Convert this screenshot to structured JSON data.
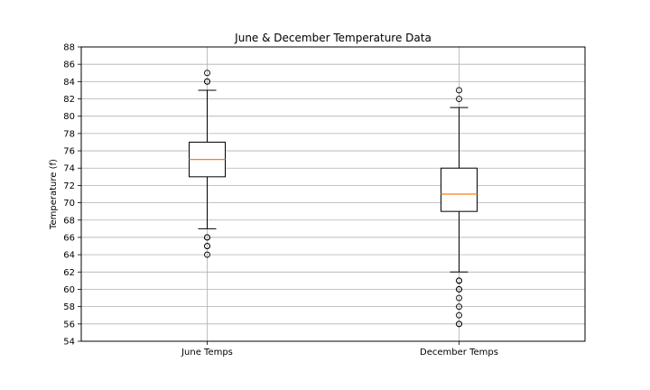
{
  "chart_data": {
    "type": "box",
    "title": "June & December Temperature Data",
    "ylabel": "Temperature (f)",
    "xlabel": "",
    "ylim": [
      54,
      88
    ],
    "yticks": [
      54,
      56,
      58,
      60,
      62,
      64,
      66,
      68,
      70,
      72,
      74,
      76,
      78,
      80,
      82,
      84,
      86,
      88
    ],
    "grid": true,
    "categories": [
      "June Temps",
      "December Temps"
    ],
    "boxes": [
      {
        "label": "June Temps",
        "whisker_low": 67,
        "q1": 73,
        "median": 75,
        "q3": 77,
        "whisker_high": 83,
        "outliers": [
          64,
          65,
          65,
          66,
          66,
          84,
          84,
          85
        ]
      },
      {
        "label": "December Temps",
        "whisker_low": 62,
        "q1": 69,
        "median": 71,
        "q3": 74,
        "whisker_high": 81,
        "outliers": [
          56,
          56,
          57,
          58,
          59,
          60,
          60,
          61,
          61,
          82,
          83
        ]
      }
    ],
    "colors": {
      "box": "#000000",
      "median": "#ff7f0e",
      "grid": "#b0b0b0",
      "outlier": "#000000"
    }
  }
}
